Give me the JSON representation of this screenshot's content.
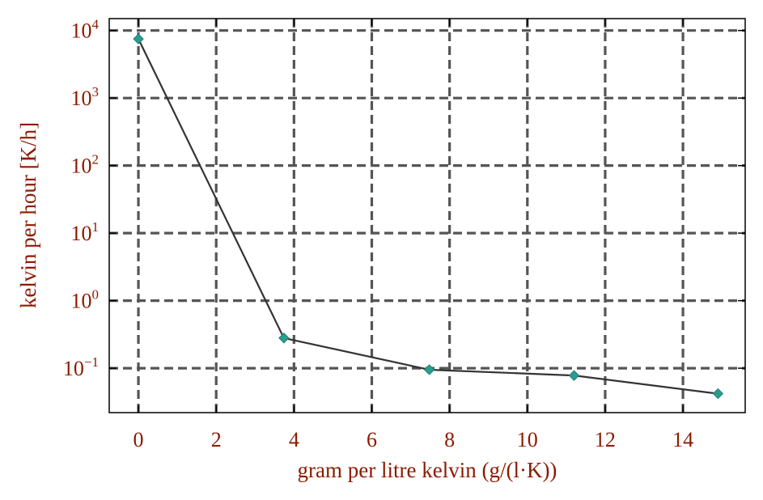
{
  "chart_data": {
    "type": "line",
    "xlabel": "gram per litre kelvin (g/(l·K))",
    "ylabel": "kelvin per hour [K/h]",
    "xlim": [
      -0.75,
      15.6
    ],
    "ylim": [
      0.022,
      15000
    ],
    "y_scale": "log",
    "grid": true,
    "x_ticks": [
      0,
      2,
      4,
      6,
      8,
      10,
      12,
      14
    ],
    "y_ticks": [
      0.1,
      1,
      10,
      100,
      1000,
      10000
    ],
    "y_tick_labels": [
      {
        "base": "10",
        "exp": "−1"
      },
      {
        "base": "10",
        "exp": "0"
      },
      {
        "base": "10",
        "exp": "1"
      },
      {
        "base": "10",
        "exp": "2"
      },
      {
        "base": "10",
        "exp": "3"
      },
      {
        "base": "10",
        "exp": "4"
      }
    ],
    "series": [
      {
        "x": [
          0,
          3.74,
          7.48,
          11.2,
          14.9
        ],
        "y": [
          7500,
          0.28,
          0.095,
          0.078,
          0.042
        ],
        "line_color": "#333333",
        "marker_color": "#2a9d8f",
        "marker": "diamond"
      }
    ]
  }
}
